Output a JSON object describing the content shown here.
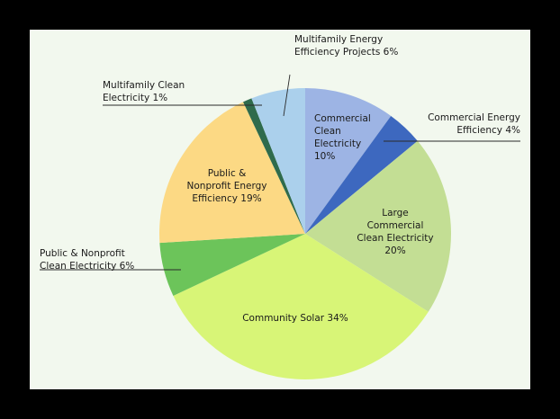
{
  "chart_data": {
    "type": "pie",
    "title": "",
    "slices": [
      {
        "name": "Commercial Clean Electricity",
        "value": 10,
        "label": [
          "Commercial",
          "Clean",
          "Electricity",
          "10%"
        ],
        "color": "#9db4e4"
      },
      {
        "name": "Commercial Energy Efficiency",
        "value": 4,
        "label": [
          "Commercial Energy",
          "Efficiency  4%"
        ],
        "color": "#3d68bf"
      },
      {
        "name": "Large Commercial Clean Electricity",
        "value": 20,
        "label": [
          "Large",
          "Commercial",
          "Clean Electricity",
          "20%"
        ],
        "color": "#c3de94"
      },
      {
        "name": "Community Solar",
        "value": 34,
        "label": [
          "Community Solar  34%"
        ],
        "color": "#d8f577"
      },
      {
        "name": "Public & Nonprofit Clean Electricity",
        "value": 6,
        "label": [
          "Public & Nonprofit",
          "Clean Electricity  6%"
        ],
        "color": "#6cc45a"
      },
      {
        "name": "Public & Nonprofit Energy Efficiency",
        "value": 19,
        "label": [
          "Public &",
          "Nonprofit Energy",
          "Efficiency  19%"
        ],
        "color": "#fcd984"
      },
      {
        "name": "Multifamily Clean Electricity",
        "value": 1,
        "label": [
          "Multifamily Clean",
          "Electricity  1%"
        ],
        "color": "#2f6b4c"
      },
      {
        "name": "Multifamily Energy Efficiency Projects",
        "value": 6,
        "label": [
          "Multifamily Energy",
          "Efficiency Projects  6%"
        ],
        "color": "#abd0ec"
      }
    ]
  }
}
